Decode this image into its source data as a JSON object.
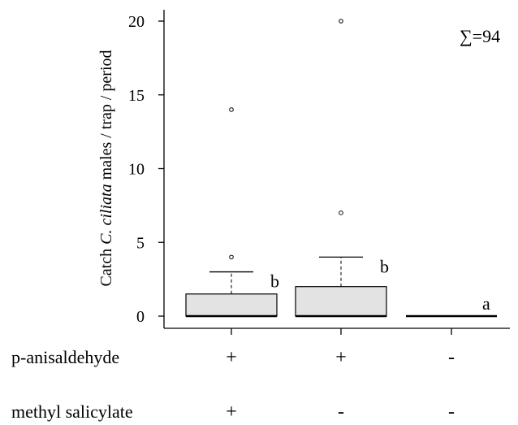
{
  "chart_data": {
    "type": "box",
    "ylabel_prefix": "Catch ",
    "ylabel_species": "C. ciliata",
    "ylabel_suffix": " males / trap / period",
    "yticks": [
      0,
      5,
      10,
      15,
      20
    ],
    "ylim": [
      -0.8,
      20.8
    ],
    "annotation": "∑=94",
    "groups": [
      {
        "p_anisaldehyde": "+",
        "methyl_salicylate": "+",
        "letter": "b",
        "q1": 0,
        "median": 0,
        "q3": 1.5,
        "whisker_low": 0,
        "whisker_high": 3,
        "outliers": [
          4,
          14
        ]
      },
      {
        "p_anisaldehyde": "+",
        "methyl_salicylate": "-",
        "letter": "b",
        "q1": 0,
        "median": 0,
        "q3": 2,
        "whisker_low": 0,
        "whisker_high": 4,
        "outliers": [
          7,
          20
        ]
      },
      {
        "p_anisaldehyde": "-",
        "methyl_salicylate": "-",
        "letter": "a",
        "q1": 0,
        "median": 0,
        "q3": 0,
        "whisker_low": 0,
        "whisker_high": 0,
        "outliers": []
      }
    ],
    "row_labels": {
      "p_anisaldehyde": "p-anisaldehyde",
      "methyl_salicylate": "methyl salicylate"
    },
    "colors": {
      "box_fill": "#e3e3e3",
      "stroke": "#000000"
    }
  }
}
